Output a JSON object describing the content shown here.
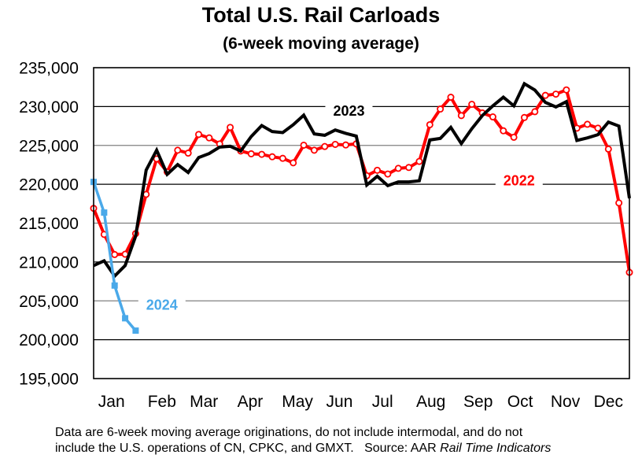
{
  "chart_data": {
    "type": "line",
    "title": "Total U.S. Rail Carloads",
    "subtitle": "(6-week moving average)",
    "xlabel": "",
    "ylabel": "",
    "ylim": [
      195000,
      235000
    ],
    "yticks": [
      195000,
      200000,
      205000,
      210000,
      215000,
      220000,
      225000,
      230000,
      235000
    ],
    "ytick_labels": [
      "195,000",
      "200,000",
      "205,000",
      "210,000",
      "215,000",
      "220,000",
      "225,000",
      "230,000",
      "235,000"
    ],
    "x_unit": "week of year",
    "xlim": [
      1,
      52
    ],
    "grid": "horizontal",
    "month_labels": [
      "Jan",
      "Feb",
      "Mar",
      "Apr",
      "May",
      "Jun",
      "Jul",
      "Aug",
      "Sep",
      "Oct",
      "Nov",
      "Dec"
    ],
    "month_label_weeks": [
      2.7,
      7.5,
      11.5,
      15.9,
      20.4,
      24.4,
      28.5,
      33.1,
      37.6,
      41.6,
      45.9,
      50
    ],
    "series": [
      {
        "name": "2022",
        "color": "#ff0000",
        "marker": "open-circle",
        "label_position": "right-middle",
        "values": [
          216900,
          213550,
          210960,
          211000,
          213650,
          218700,
          223270,
          221590,
          224380,
          224010,
          226410,
          225970,
          225190,
          227320,
          224280,
          223920,
          223850,
          223540,
          223340,
          222760,
          225030,
          224380,
          224860,
          225130,
          225060,
          225200,
          221100,
          221800,
          221320,
          222050,
          222160,
          222940,
          227660,
          229680,
          231200,
          228840,
          230290,
          229180,
          228670,
          226880,
          226050,
          228590,
          229340,
          231440,
          231600,
          232140,
          227220,
          227720,
          227220,
          224530,
          217600,
          208660
        ]
      },
      {
        "name": "2023",
        "color": "#000000",
        "marker": "none",
        "label_position": "top-middle",
        "values": [
          209540,
          210150,
          208190,
          209540,
          213320,
          221820,
          224380,
          221280,
          222530,
          221520,
          223440,
          223950,
          224790,
          224890,
          224280,
          226140,
          227560,
          226780,
          226650,
          227660,
          228890,
          226480,
          226300,
          226980,
          226550,
          226200,
          219900,
          221030,
          219820,
          220300,
          220300,
          220450,
          225700,
          225900,
          227320,
          225230,
          227150,
          228840,
          230090,
          231200,
          230090,
          232940,
          232120,
          230530,
          229950,
          230630,
          225640,
          225970,
          226380,
          228000,
          227490,
          218200
        ]
      },
      {
        "name": "2024",
        "color": "#4aa9e9",
        "marker": "filled-square",
        "label_position": "left-bottom",
        "values": [
          220300,
          216360,
          206970,
          202760,
          201170
        ]
      }
    ],
    "series_labels": [
      {
        "text": "2023",
        "color": "#000000"
      },
      {
        "text": "2022",
        "color": "#ff0000"
      },
      {
        "text": "2024",
        "color": "#4aa9e9"
      }
    ]
  },
  "footnote": {
    "line1": "Data are 6-week moving average originations, do not include intermodal, and do not",
    "line2_prefix": "include the U.S. operations of CN, CPKC, and GMXT.   Source: AAR ",
    "line2_italic": "Rail Time Indicators"
  }
}
